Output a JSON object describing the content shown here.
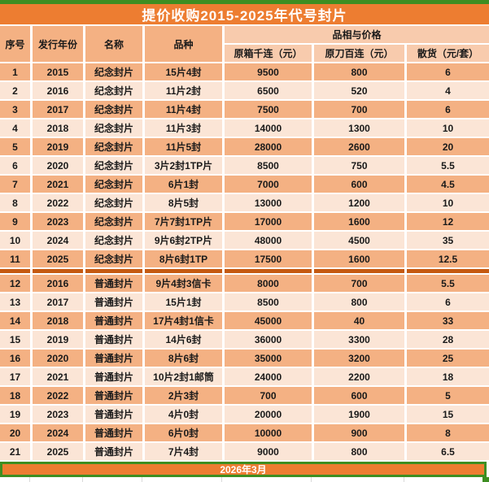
{
  "title": "提价收购2015-2025年代号封片",
  "header": {
    "col_serial": "序号",
    "col_year": "发行年份",
    "col_name": "名称",
    "col_variety": "品种",
    "col_group": "品相与价格",
    "col_box": "原箱千连（元）",
    "col_blade": "原刀百连（元）",
    "col_bulk": "散货（元/套）"
  },
  "sections": [
    {
      "category": "纪念封片",
      "rows": [
        {
          "serial": "1",
          "year": "2015",
          "name": "纪念封片",
          "variety": "15片4封",
          "box": "9500",
          "blade": "800",
          "bulk": "6"
        },
        {
          "serial": "2",
          "year": "2016",
          "name": "纪念封片",
          "variety": "11片2封",
          "box": "6500",
          "blade": "520",
          "bulk": "4"
        },
        {
          "serial": "3",
          "year": "2017",
          "name": "纪念封片",
          "variety": "11片4封",
          "box": "7500",
          "blade": "700",
          "bulk": "6"
        },
        {
          "serial": "4",
          "year": "2018",
          "name": "纪念封片",
          "variety": "11片3封",
          "box": "14000",
          "blade": "1300",
          "bulk": "10"
        },
        {
          "serial": "5",
          "year": "2019",
          "name": "纪念封片",
          "variety": "11片5封",
          "box": "28000",
          "blade": "2600",
          "bulk": "20"
        },
        {
          "serial": "6",
          "year": "2020",
          "name": "纪念封片",
          "variety": "3片2封1TP片",
          "box": "8500",
          "blade": "750",
          "bulk": "5.5"
        },
        {
          "serial": "7",
          "year": "2021",
          "name": "纪念封片",
          "variety": "6片1封",
          "box": "7000",
          "blade": "600",
          "bulk": "4.5"
        },
        {
          "serial": "8",
          "year": "2022",
          "name": "纪念封片",
          "variety": "8片5封",
          "box": "13000",
          "blade": "1200",
          "bulk": "10"
        },
        {
          "serial": "9",
          "year": "2023",
          "name": "纪念封片",
          "variety": "7片7封1TP片",
          "box": "17000",
          "blade": "1600",
          "bulk": "12"
        },
        {
          "serial": "10",
          "year": "2024",
          "name": "纪念封片",
          "variety": "9片6封2TP片",
          "box": "48000",
          "blade": "4500",
          "bulk": "35"
        },
        {
          "serial": "11",
          "year": "2025",
          "name": "纪念封片",
          "variety": "8片6封1TP",
          "box": "17500",
          "blade": "1600",
          "bulk": "12.5"
        }
      ]
    },
    {
      "category": "普通封片",
      "rows": [
        {
          "serial": "12",
          "year": "2016",
          "name": "普通封片",
          "variety": "9片4封3信卡",
          "box": "8000",
          "blade": "700",
          "bulk": "5.5"
        },
        {
          "serial": "13",
          "year": "2017",
          "name": "普通封片",
          "variety": "15片1封",
          "box": "8500",
          "blade": "800",
          "bulk": "6"
        },
        {
          "serial": "14",
          "year": "2018",
          "name": "普通封片",
          "variety": "17片4封1信卡",
          "box": "45000",
          "blade": "40",
          "bulk": "33"
        },
        {
          "serial": "15",
          "year": "2019",
          "name": "普通封片",
          "variety": "14片6封",
          "box": "36000",
          "blade": "3300",
          "bulk": "28"
        },
        {
          "serial": "16",
          "year": "2020",
          "name": "普通封片",
          "variety": "8片6封",
          "box": "35000",
          "blade": "3200",
          "bulk": "25"
        },
        {
          "serial": "17",
          "year": "2021",
          "name": "普通封片",
          "variety": "10片2封1邮筒",
          "box": "24000",
          "blade": "2200",
          "bulk": "18"
        },
        {
          "serial": "18",
          "year": "2022",
          "name": "普通封片",
          "variety": "2片3封",
          "box": "700",
          "blade": "600",
          "bulk": "5"
        },
        {
          "serial": "19",
          "year": "2023",
          "name": "普通封片",
          "variety": "4片0封",
          "box": "20000",
          "blade": "1900",
          "bulk": "15"
        },
        {
          "serial": "20",
          "year": "2024",
          "name": "普通封片",
          "variety": "6片0封",
          "box": "10000",
          "blade": "900",
          "bulk": "8"
        },
        {
          "serial": "21",
          "year": "2025",
          "name": "普通封片",
          "variety": "7片4封",
          "box": "9000",
          "blade": "800",
          "bulk": "6.5"
        }
      ]
    }
  ],
  "footer": {
    "date": "2026年3月"
  },
  "colors": {
    "accent_orange": "#ED7D31",
    "dark_orange": "#C55A11",
    "green": "#3E8E22",
    "header_left_bg": "#F4B183",
    "header_right_bg": "#F8CBAD",
    "row_dark": "#F4B183",
    "row_light": "#FBE5D6"
  }
}
